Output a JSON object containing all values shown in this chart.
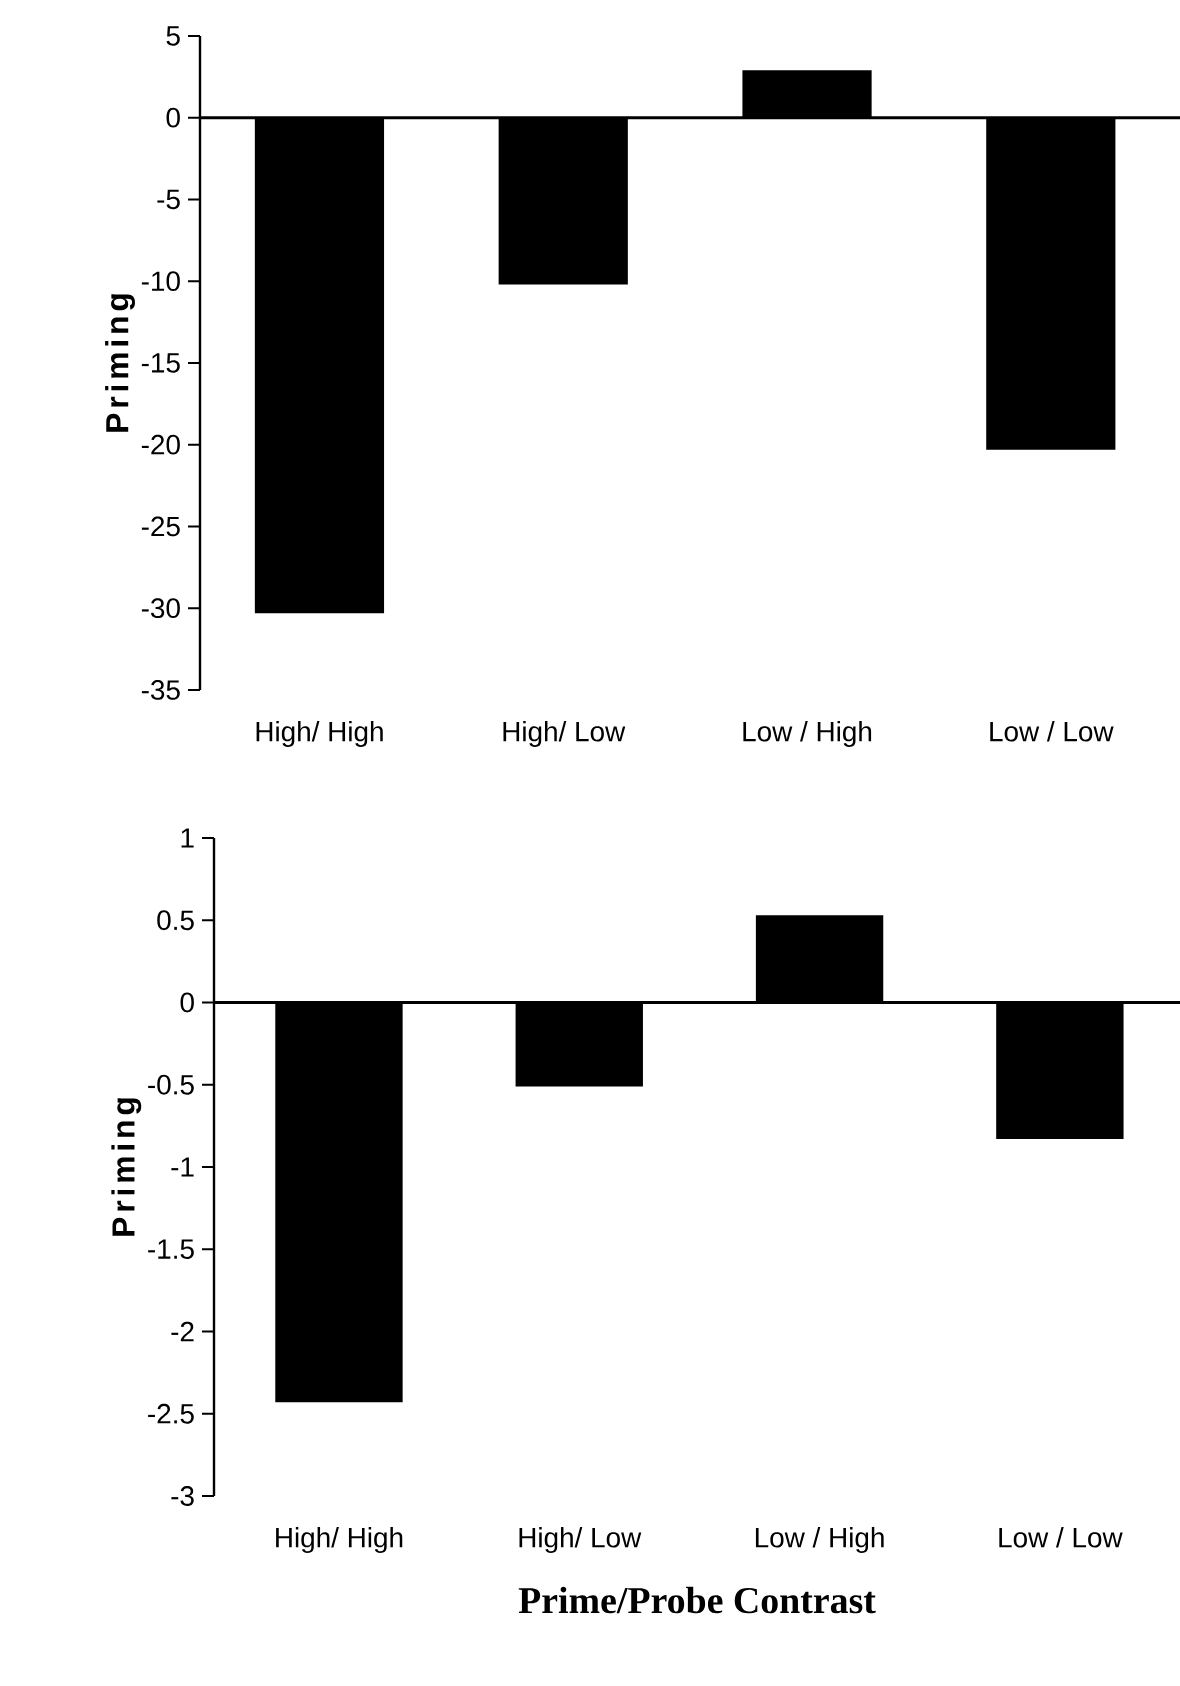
{
  "chart_data": [
    {
      "type": "bar",
      "ylabel": "Priming",
      "categories": [
        "High/ High",
        "High/ Low",
        "Low / High",
        "Low / Low"
      ],
      "values": [
        -30.3,
        -10.2,
        2.9,
        -20.3
      ],
      "color": "#000000",
      "ylim": [
        -35,
        5
      ],
      "yticks": [
        -35,
        -30,
        -25,
        -20,
        -15,
        -10,
        -5,
        0,
        5
      ]
    },
    {
      "type": "bar",
      "ylabel": "Priming",
      "xlabel": "Prime/Probe Contrast",
      "categories": [
        "High/ High",
        "High/ Low",
        "Low / High",
        "Low / Low"
      ],
      "values": [
        -2.43,
        -0.51,
        0.53,
        -0.83
      ],
      "color": "#000000",
      "ylim": [
        -3,
        1
      ],
      "yticks": [
        -3,
        -2.5,
        -2,
        -1.5,
        -1,
        -0.5,
        0,
        0.5,
        1
      ]
    }
  ]
}
